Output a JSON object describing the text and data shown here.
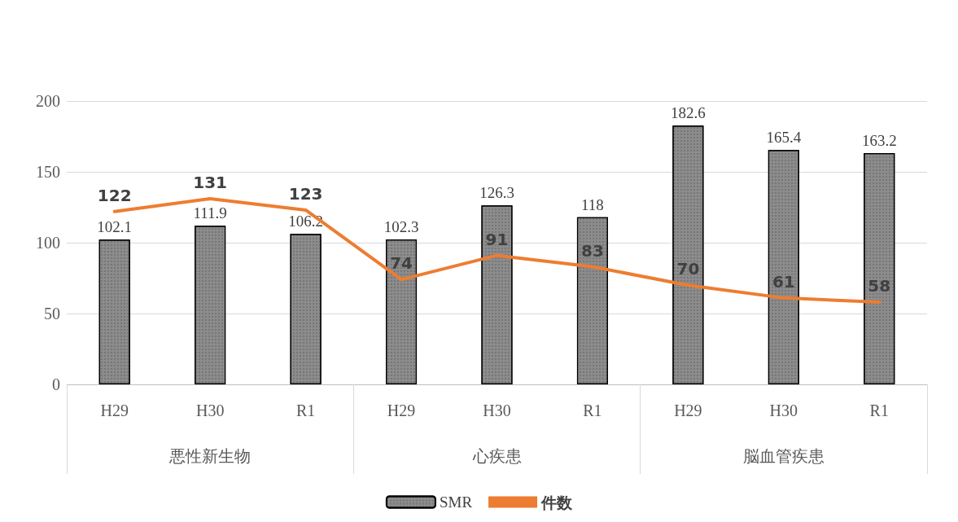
{
  "chart_data": {
    "type": "bar",
    "categories": [
      "H29",
      "H30",
      "R1",
      "H29",
      "H30",
      "R1",
      "H29",
      "H30",
      "R1"
    ],
    "annotations": [
      "悪性新生物",
      "心疾患",
      "脳血管疾患"
    ],
    "series": [
      {
        "name": "SMR",
        "color": "#8c8c8c",
        "values": [
          102.1,
          111.9,
          106.2,
          102.3,
          126.3,
          118,
          182.6,
          165.4,
          163.2
        ]
      },
      {
        "name": "件数",
        "type": "line",
        "color": "#ed7d31",
        "values": [
          122,
          131,
          123,
          74,
          91,
          83,
          70,
          61,
          58
        ]
      }
    ],
    "ylim": [
      0,
      200
    ],
    "yticks": [
      0,
      50,
      100,
      150,
      200
    ],
    "grid": "y",
    "legend": "bottom",
    "data_labels": true,
    "marker": "none"
  }
}
